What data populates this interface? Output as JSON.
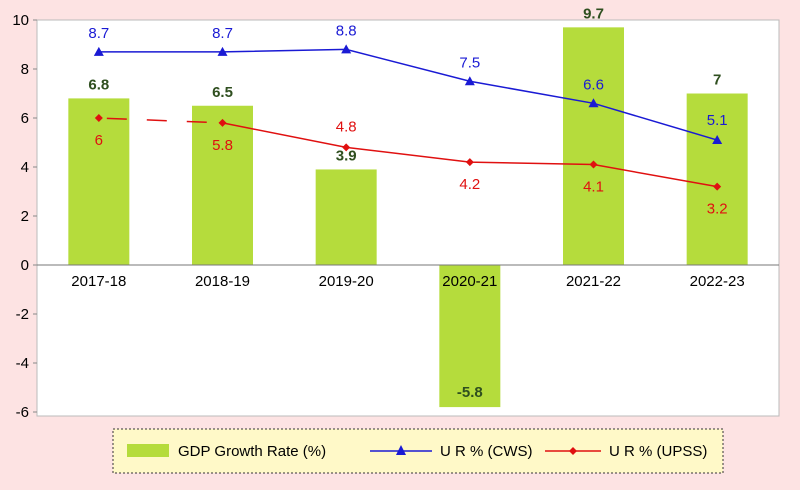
{
  "chart_data": {
    "type": "bar",
    "categories": [
      "2017-18",
      "2018-19",
      "2019-20",
      "2020-21",
      "2021-22",
      "2022-23"
    ],
    "ylim": [
      -6,
      10
    ],
    "yticks": [
      -6,
      -4,
      -2,
      0,
      2,
      4,
      6,
      8,
      10
    ],
    "grid": false,
    "legend_position": "bottom",
    "series": [
      {
        "name": "GDP Growth Rate (%)",
        "type": "bar",
        "color": "#b5dc3c",
        "values": [
          6.8,
          6.5,
          3.9,
          -5.8,
          9.7,
          7
        ],
        "labels": [
          "6.8",
          "6.5",
          "3.9",
          "-5.8",
          "9.7",
          "7"
        ]
      },
      {
        "name": "U R % (CWS)",
        "type": "line",
        "color": "#1a1ad4",
        "marker": "triangle",
        "values": [
          8.7,
          8.7,
          8.8,
          7.5,
          6.6,
          5.1
        ],
        "labels": [
          "8.7",
          "8.7",
          "8.8",
          "7.5",
          "6.6",
          "5.1"
        ]
      },
      {
        "name": "U R % (UPSS)",
        "type": "line",
        "color": "#e01010",
        "marker": "diamond",
        "values": [
          6,
          5.8,
          4.8,
          4.2,
          4.1,
          3.2
        ],
        "labels": [
          "6",
          "5.8",
          "4.8",
          "4.2",
          "4.1",
          "3.2"
        ]
      }
    ]
  }
}
